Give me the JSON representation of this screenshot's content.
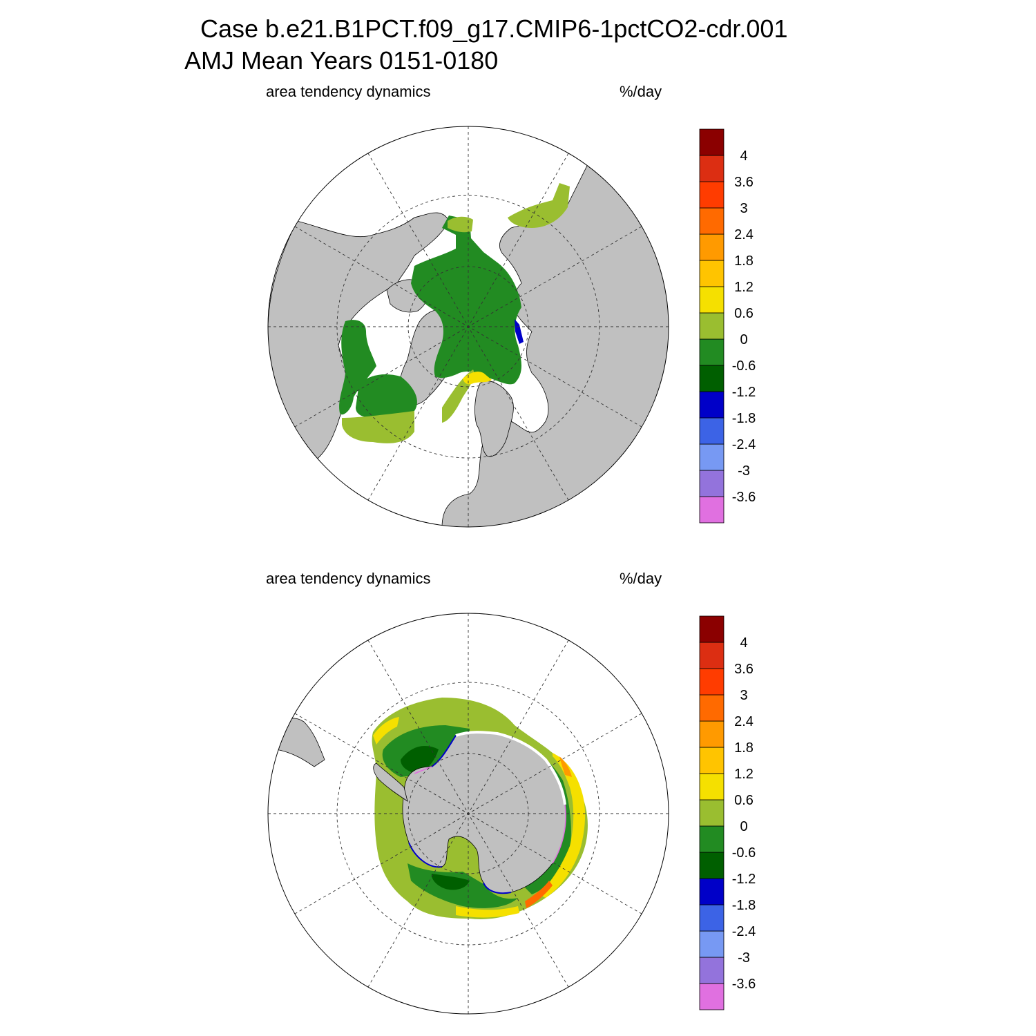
{
  "header": {
    "title_line1": "Case b.e21.B1PCT.f09_g17.CMIP6-1pctCO2-cdr.001",
    "title_line2": "AMJ Mean   Years 0151-0180"
  },
  "panels": [
    {
      "id": "north",
      "left_label": "area tendency dynamics",
      "right_label": "%/day"
    },
    {
      "id": "south",
      "left_label": "area tendency dynamics",
      "right_label": "%/day"
    }
  ],
  "colorbar": {
    "colors": [
      "#e070e0",
      "#9373dc",
      "#7799f3",
      "#3c63e6",
      "#0000c8",
      "#005f00",
      "#228b22",
      "#9abe30",
      "#f5e000",
      "#ffc400",
      "#ff9a00",
      "#ff6a00",
      "#ff3c00",
      "#dc2e12",
      "#8b0000"
    ],
    "labels": [
      "-3.6",
      "-3",
      "-2.4",
      "-1.8",
      "-1.2",
      "-0.6",
      "0",
      "0.6",
      "1.2",
      "1.8",
      "2.4",
      "3",
      "3.6",
      "4"
    ]
  },
  "colors": {
    "land": "#c0c0c0",
    "ocean": "#ffffff",
    "ice_green": "#228b22",
    "ice_darkgreen": "#005f00",
    "ice_olive": "#9abe30",
    "ice_yellow": "#f5e000"
  }
}
